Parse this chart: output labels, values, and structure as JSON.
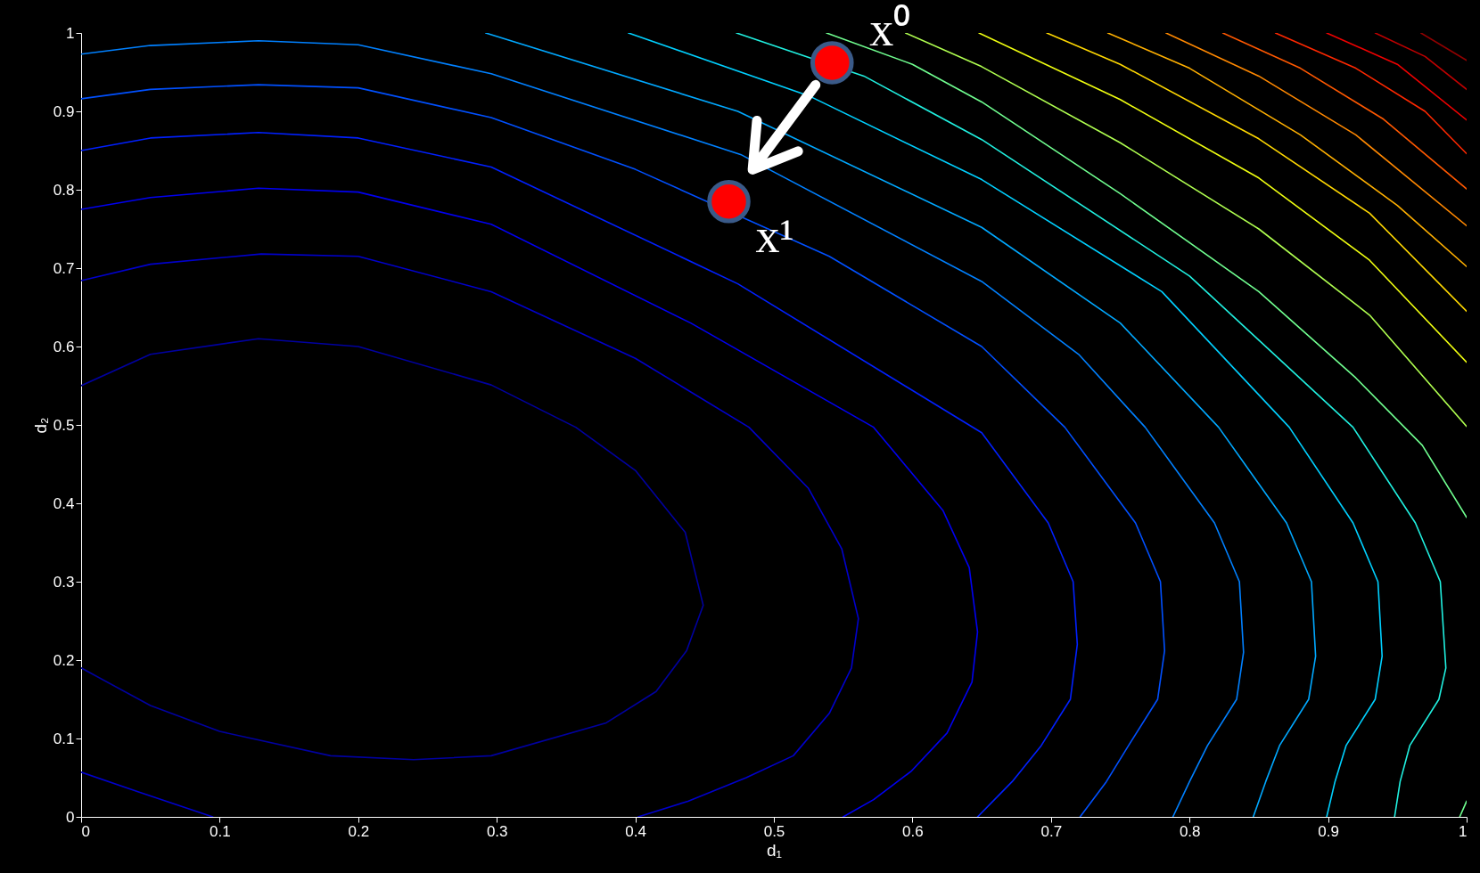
{
  "chart_data": {
    "type": "line",
    "xlabel": "d₁",
    "ylabel": "d₂",
    "xlim": [
      0,
      1
    ],
    "ylim": [
      0,
      1
    ],
    "xticks": [
      0,
      0.1,
      0.2,
      0.3,
      0.4,
      0.5,
      0.6,
      0.7,
      0.8,
      0.9,
      1
    ],
    "yticks": [
      0,
      0.1,
      0.2,
      0.3,
      0.4,
      0.5,
      0.6,
      0.7,
      0.8,
      0.9,
      1
    ],
    "grid": false,
    "legend": false,
    "marker": "none",
    "line_style": "solid",
    "annotations": [
      {
        "text": "x⁰",
        "x": 0.542,
        "y": 0.962
      },
      {
        "text": "x¹",
        "x": 0.4675,
        "y": 0.785
      }
    ],
    "series": [
      {
        "color": "#0000a0",
        "x": [
          0,
          0.05,
          0.128,
          0.2,
          0.296,
          0.357,
          0.4,
          0.436,
          0.449,
          0.437,
          0.415,
          0.379,
          0.296,
          0.24,
          0.18,
          0.1,
          0.05,
          0
        ],
        "values": [
          0.55,
          0.59,
          0.61,
          0.6,
          0.551,
          0.497,
          0.442,
          0.363,
          0.27,
          0.212,
          0.16,
          0.12,
          0.078,
          0.073,
          0.078,
          0.109,
          0.142,
          0.19
        ]
      },
      {
        "color": "#0000cc",
        "x": [
          0,
          0.05,
          0.13,
          0.2,
          0.296,
          0.4,
          0.482,
          0.525,
          0.549,
          0.561,
          0.556,
          0.54,
          0.514,
          0.48,
          0.438,
          0.402,
          null,
          0,
          0.041,
          0.095
        ],
        "values": [
          0.684,
          0.705,
          0.718,
          0.715,
          0.67,
          0.585,
          0.497,
          0.419,
          0.342,
          0.253,
          0.19,
          0.132,
          0.078,
          0.05,
          0.02,
          0,
          null,
          0.057,
          0.032,
          0
        ]
      },
      {
        "color": "#0000f0",
        "x": [
          0,
          0.05,
          0.128,
          0.2,
          0.296,
          0.44,
          0.572,
          0.622,
          0.641,
          0.647,
          0.643,
          0.625,
          0.599,
          0.572,
          0.55
        ],
        "values": [
          0.775,
          0.79,
          0.802,
          0.797,
          0.756,
          0.63,
          0.497,
          0.391,
          0.318,
          0.236,
          0.172,
          0.107,
          0.058,
          0.022,
          0
        ]
      },
      {
        "color": "#0020ff",
        "x": [
          0,
          0.05,
          0.128,
          0.2,
          0.296,
          0.474,
          0.65,
          0.698,
          0.716,
          0.719,
          0.714,
          0.693,
          0.672,
          0.647
        ],
        "values": [
          0.85,
          0.866,
          0.873,
          0.866,
          0.829,
          0.68,
          0.49,
          0.375,
          0.3,
          0.22,
          0.15,
          0.091,
          0.045,
          0
        ]
      },
      {
        "color": "#0050ff",
        "x": [
          0,
          0.05,
          0.128,
          0.2,
          0.296,
          0.4,
          0.54,
          0.65,
          0.71,
          0.761,
          0.779,
          0.782,
          0.777,
          0.756,
          0.74,
          0.721
        ],
        "values": [
          0.916,
          0.928,
          0.934,
          0.93,
          0.892,
          0.826,
          0.715,
          0.6,
          0.497,
          0.375,
          0.3,
          0.212,
          0.15,
          0.091,
          0.045,
          0
        ]
      },
      {
        "color": "#0080ff",
        "x": [
          0,
          0.05,
          0.128,
          0.2,
          0.296,
          0.476,
          0.65,
          0.72,
          0.768,
          0.818,
          0.836,
          0.839,
          0.834,
          0.813,
          0.8,
          0.788
        ],
        "values": [
          0.973,
          0.984,
          0.99,
          0.985,
          0.948,
          0.845,
          0.683,
          0.59,
          0.497,
          0.375,
          0.3,
          0.21,
          0.15,
          0.091,
          0.045,
          0
        ]
      },
      {
        "color": "#00a8ff",
        "x": [
          0.292,
          0.474,
          0.65,
          0.75,
          0.821,
          0.87,
          0.888,
          0.891,
          0.886,
          0.865,
          0.855,
          0.846
        ],
        "values": [
          1,
          0.9,
          0.752,
          0.63,
          0.497,
          0.375,
          0.3,
          0.205,
          0.15,
          0.091,
          0.045,
          0
        ]
      },
      {
        "color": "#00d0ff",
        "x": [
          0.395,
          0.525,
          0.65,
          0.78,
          0.872,
          0.918,
          0.936,
          0.939,
          0.934,
          0.913,
          0.905,
          0.899
        ],
        "values": [
          1,
          0.92,
          0.813,
          0.67,
          0.497,
          0.375,
          0.3,
          0.205,
          0.15,
          0.091,
          0.045,
          0
        ]
      },
      {
        "color": "#20f0e0",
        "x": [
          0.473,
          0.565,
          0.65,
          0.8,
          0.918,
          0.963,
          0.981,
          0.985,
          0.98,
          0.959,
          0.952,
          0.948
        ],
        "values": [
          1,
          0.945,
          0.864,
          0.69,
          0.497,
          0.375,
          0.3,
          0.19,
          0.15,
          0.091,
          0.045,
          0
        ]
      },
      {
        "color": "#70ff90",
        "x": [
          0.538,
          0.6,
          0.65,
          0.75,
          0.85,
          0.92,
          0.968,
          1,
          null,
          0.995,
          1
        ],
        "values": [
          1,
          0.96,
          0.912,
          0.795,
          0.67,
          0.56,
          0.474,
          0.382,
          null,
          0,
          0.02
        ]
      },
      {
        "color": "#b0ff50",
        "x": [
          0.595,
          0.65,
          0.75,
          0.85,
          0.93,
          1
        ],
        "values": [
          1,
          0.957,
          0.86,
          0.75,
          0.64,
          0.498
        ]
      },
      {
        "color": "#f0ff10",
        "x": [
          0.648,
          0.75,
          0.85,
          0.93,
          1
        ],
        "values": [
          1,
          0.915,
          0.815,
          0.71,
          0.58
        ]
      },
      {
        "color": "#ffd800",
        "x": [
          0.697,
          0.75,
          0.85,
          0.93,
          1
        ],
        "values": [
          1,
          0.96,
          0.865,
          0.77,
          0.645
        ]
      },
      {
        "color": "#ffb000",
        "x": [
          0.741,
          0.8,
          0.88,
          0.95,
          1
        ],
        "values": [
          1,
          0.955,
          0.87,
          0.78,
          0.702
        ]
      },
      {
        "color": "#ff8800",
        "x": [
          0.783,
          0.85,
          0.92,
          1
        ],
        "values": [
          1,
          0.945,
          0.87,
          0.754
        ]
      },
      {
        "color": "#ff5800",
        "x": [
          0.824,
          0.88,
          0.94,
          1
        ],
        "values": [
          1,
          0.955,
          0.89,
          0.801
        ]
      },
      {
        "color": "#ff2800",
        "x": [
          0.862,
          0.92,
          0.97,
          1
        ],
        "values": [
          1,
          0.955,
          0.9,
          0.846
        ]
      },
      {
        "color": "#f00000",
        "x": [
          0.899,
          0.95,
          1
        ],
        "values": [
          1,
          0.96,
          0.889
        ]
      },
      {
        "color": "#c00000",
        "x": [
          0.934,
          0.97,
          1
        ],
        "values": [
          1,
          0.97,
          0.928
        ]
      },
      {
        "color": "#900000",
        "x": [
          0.967,
          1
        ],
        "values": [
          1,
          0.965
        ]
      },
      {
        "type": "scatter",
        "marker": "circle",
        "color": "#ff0000",
        "x": [
          0.542,
          0.4675
        ],
        "values": [
          0.962,
          0.785
        ]
      }
    ]
  }
}
